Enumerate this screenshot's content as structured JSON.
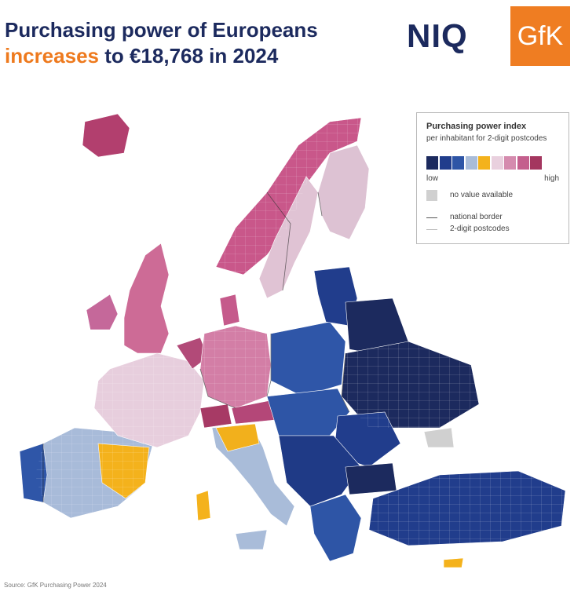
{
  "header": {
    "title_line1": "Purchasing power of Europeans",
    "title_accent": "increases",
    "title_rest": " to €18,768 in 2024"
  },
  "logos": {
    "niq": "NIQ",
    "gfk": "GfK"
  },
  "legend": {
    "title": "Purchasing power index",
    "subtitle": "per inhabitant for 2-digit postcodes",
    "scale_colors": [
      "#1c2a5e",
      "#213d8c",
      "#2e55a6",
      "#a9bcd9",
      "#f4b21c",
      "#e9d0de",
      "#d58bae",
      "#c45f8d",
      "#a4365f"
    ],
    "low_label": "low",
    "high_label": "high",
    "no_value_label": "no value available",
    "national_border_label": "national border",
    "postcode_label": "2-digit postcodes"
  },
  "map": {
    "regions": [
      {
        "name": "Iceland",
        "level": "high"
      },
      {
        "name": "Norway",
        "level": "high"
      },
      {
        "name": "Sweden",
        "level": "mid-high"
      },
      {
        "name": "Finland",
        "level": "mid-high"
      },
      {
        "name": "United Kingdom",
        "level": "high"
      },
      {
        "name": "Ireland",
        "level": "high"
      },
      {
        "name": "Denmark",
        "level": "high"
      },
      {
        "name": "Germany",
        "level": "high"
      },
      {
        "name": "Benelux",
        "level": "high"
      },
      {
        "name": "France",
        "level": "mid-high"
      },
      {
        "name": "Switzerland",
        "level": "high"
      },
      {
        "name": "Austria",
        "level": "high"
      },
      {
        "name": "Spain",
        "level": "mid-low"
      },
      {
        "name": "Portugal",
        "level": "low"
      },
      {
        "name": "Italy",
        "level": "mid"
      },
      {
        "name": "Poland",
        "level": "low"
      },
      {
        "name": "Baltics",
        "level": "low"
      },
      {
        "name": "Ukraine",
        "level": "low"
      },
      {
        "name": "Balkans",
        "level": "low"
      },
      {
        "name": "Greece",
        "level": "low"
      },
      {
        "name": "Turkey",
        "level": "low"
      },
      {
        "name": "Crimea",
        "level": "no value"
      }
    ]
  },
  "source": "Source: GfK Purchasing Power 2024"
}
